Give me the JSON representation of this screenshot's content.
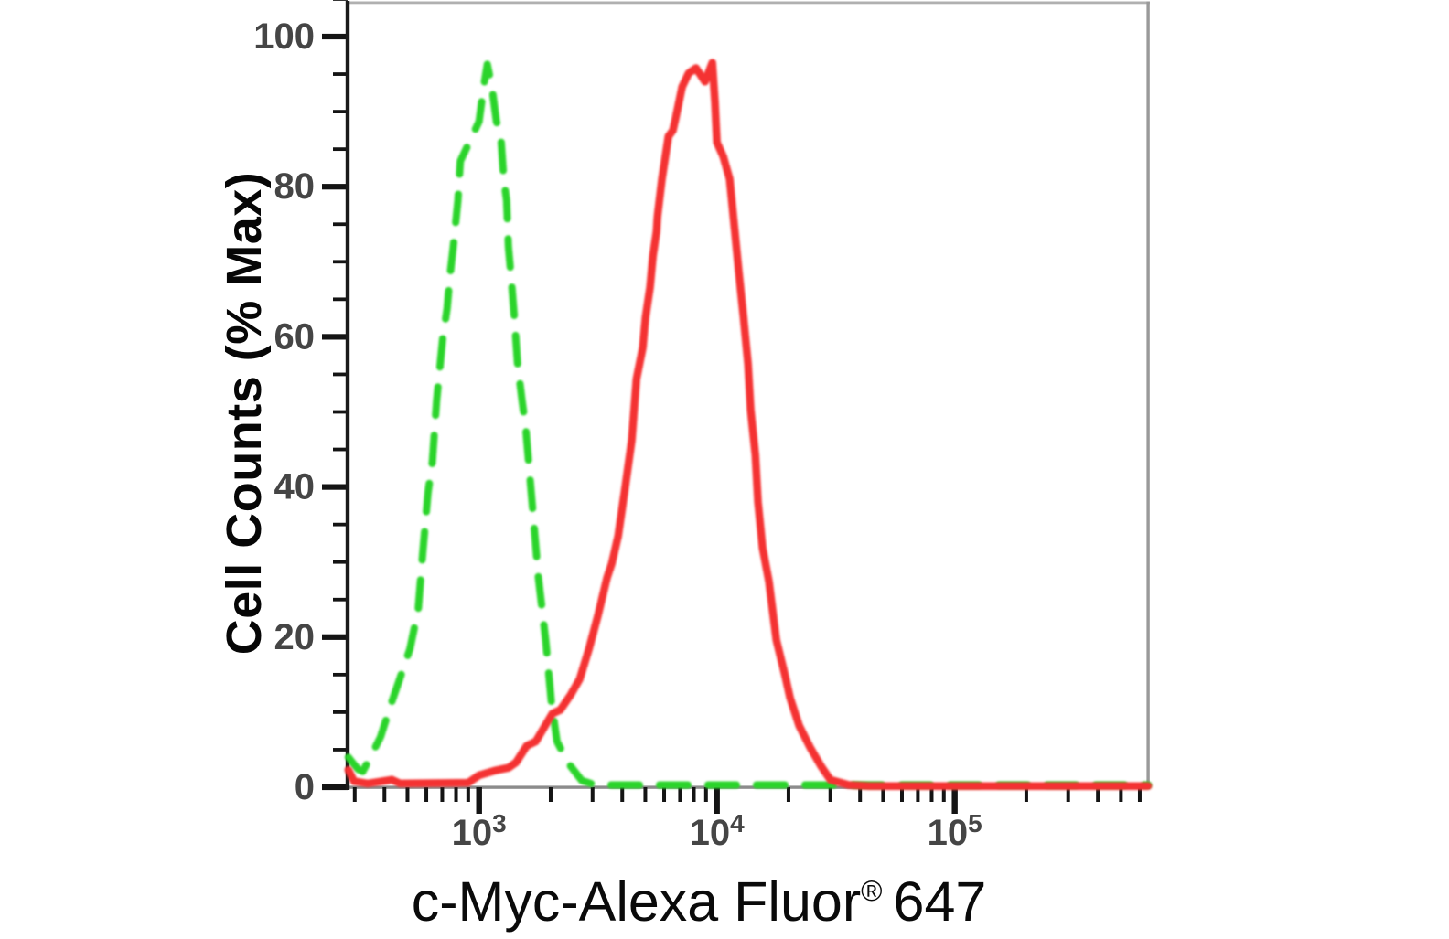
{
  "figure": {
    "background": "#ffffff",
    "ylabel": "Cell Counts (% Max)",
    "xlabel_main": "c-Myc-Alexa Fluor",
    "xlabel_registered": "®",
    "xlabel_suffix": "647"
  },
  "chart_data": {
    "type": "line",
    "title": "",
    "xlabel": "c-Myc-Alexa Fluor® 647",
    "ylabel": "Cell Counts (% Max)",
    "x_scale": "log",
    "x_range": [
      280,
      650000
    ],
    "y_range": [
      0,
      104.5
    ],
    "grid": false,
    "legend": "none",
    "colors": {
      "red_series": "#f43030",
      "green_series": "#2ad42a",
      "y_axis_line": "#1a1a1a",
      "x_axis_line": "#8c8c8c",
      "frame_top": "#b0b0b0",
      "frame_right": "#9a9a9a",
      "tick": "#141414",
      "tick_label": "#454545",
      "title": "#0a0a0a"
    },
    "x_major_ticks": [
      {
        "value": 1000,
        "base": "10",
        "exp": "3"
      },
      {
        "value": 10000,
        "base": "10",
        "exp": "4"
      },
      {
        "value": 100000,
        "base": "10",
        "exp": "5"
      }
    ],
    "x_minor_tick_values": [
      300,
      400,
      500,
      600,
      700,
      800,
      900,
      2000,
      3000,
      4000,
      5000,
      6000,
      7000,
      8000,
      9000,
      20000,
      30000,
      40000,
      50000,
      60000,
      70000,
      80000,
      90000,
      200000,
      300000,
      400000,
      500000,
      600000
    ],
    "y_major_ticks": [
      {
        "value": 0,
        "label": "0"
      },
      {
        "value": 20,
        "label": "20"
      },
      {
        "value": 40,
        "label": "40"
      },
      {
        "value": 60,
        "label": "60"
      },
      {
        "value": 80,
        "label": "80"
      },
      {
        "value": 100,
        "label": "100"
      }
    ],
    "y_minor_tick_values": [
      5,
      10,
      15,
      25,
      30,
      35,
      45,
      50,
      55,
      65,
      70,
      75,
      85,
      90,
      95,
      105
    ],
    "series": [
      {
        "name": "green-dashed-curve",
        "style": "dashed",
        "color_key": "green_series",
        "dash": [
          31,
          22
        ],
        "width": 8,
        "points": [
          [
            282,
            4.0
          ],
          [
            295,
            3.2
          ],
          [
            310,
            2.4
          ],
          [
            324,
            2.1
          ],
          [
            344,
            3.6
          ],
          [
            385,
            6.7
          ],
          [
            430,
            11.4
          ],
          [
            459,
            14.0
          ],
          [
            512,
            18.4
          ],
          [
            555,
            23.7
          ],
          [
            579,
            31.0
          ],
          [
            610,
            39.3
          ],
          [
            636,
            43.3
          ],
          [
            663,
            51.5
          ],
          [
            703,
            59.7
          ],
          [
            734,
            63.8
          ],
          [
            753,
            67.9
          ],
          [
            779,
            72.0
          ],
          [
            815,
            78.2
          ],
          [
            834,
            83.4
          ],
          [
            1000,
            88.7
          ],
          [
            1045,
            93.3
          ],
          [
            1083,
            96.3
          ],
          [
            1132,
            93.3
          ],
          [
            1183,
            88.7
          ],
          [
            1237,
            86.3
          ],
          [
            1270,
            81.0
          ],
          [
            1305,
            78.2
          ],
          [
            1328,
            72.0
          ],
          [
            1364,
            67.9
          ],
          [
            1413,
            61.7
          ],
          [
            1451,
            56.4
          ],
          [
            1516,
            51.5
          ],
          [
            1571,
            47.9
          ],
          [
            1656,
            39.3
          ],
          [
            1777,
            27.9
          ],
          [
            1906,
            19.6
          ],
          [
            2013,
            11.4
          ],
          [
            2126,
            6.1
          ],
          [
            2360,
            3.3
          ],
          [
            2700,
            0.9
          ],
          [
            3080,
            0.3
          ],
          [
            650000,
            0.3
          ]
        ]
      },
      {
        "name": "red-solid-curve",
        "style": "solid",
        "color_key": "red_series",
        "dash": [],
        "width": 8.5,
        "points": [
          [
            282,
            2.3
          ],
          [
            298,
            0.8
          ],
          [
            340,
            0.5
          ],
          [
            430,
            1.0
          ],
          [
            465,
            0.5
          ],
          [
            900,
            0.6
          ],
          [
            1000,
            1.6
          ],
          [
            1160,
            2.2
          ],
          [
            1330,
            2.6
          ],
          [
            1430,
            3.3
          ],
          [
            1585,
            5.5
          ],
          [
            1731,
            6.1
          ],
          [
            2032,
            9.8
          ],
          [
            2198,
            10.3
          ],
          [
            2426,
            12.3
          ],
          [
            2649,
            14.4
          ],
          [
            2896,
            18.4
          ],
          [
            3162,
            22.9
          ],
          [
            3451,
            27.9
          ],
          [
            3614,
            29.8
          ],
          [
            3846,
            33.5
          ],
          [
            4121,
            40.1
          ],
          [
            4385,
            46.2
          ],
          [
            4590,
            54.4
          ],
          [
            4877,
            58.5
          ],
          [
            5012,
            62.6
          ],
          [
            5236,
            66.6
          ],
          [
            5383,
            70.8
          ],
          [
            5572,
            74.0
          ],
          [
            5623,
            76.0
          ],
          [
            5875,
            81.0
          ],
          [
            6253,
            86.7
          ],
          [
            6531,
            87.5
          ],
          [
            6714,
            89.2
          ],
          [
            7145,
            93.3
          ],
          [
            7603,
            95.1
          ],
          [
            8166,
            95.8
          ],
          [
            8913,
            94.0
          ],
          [
            9571,
            96.5
          ],
          [
            9817,
            91.2
          ],
          [
            10000,
            85.9
          ],
          [
            10640,
            84.0
          ],
          [
            11320,
            81.0
          ],
          [
            11830,
            74.8
          ],
          [
            12360,
            68.7
          ],
          [
            12940,
            62.6
          ],
          [
            13520,
            56.4
          ],
          [
            13870,
            50.3
          ],
          [
            14520,
            44.2
          ],
          [
            14890,
            38.0
          ],
          [
            15560,
            31.9
          ],
          [
            16560,
            27.4
          ],
          [
            17780,
            19.6
          ],
          [
            19280,
            15.1
          ],
          [
            20320,
            11.9
          ],
          [
            22180,
            8.2
          ],
          [
            24660,
            5.3
          ],
          [
            27420,
            2.8
          ],
          [
            29990,
            1.0
          ],
          [
            35810,
            0.3
          ],
          [
            43850,
            0.15
          ],
          [
            650000,
            0.15
          ]
        ]
      }
    ]
  }
}
